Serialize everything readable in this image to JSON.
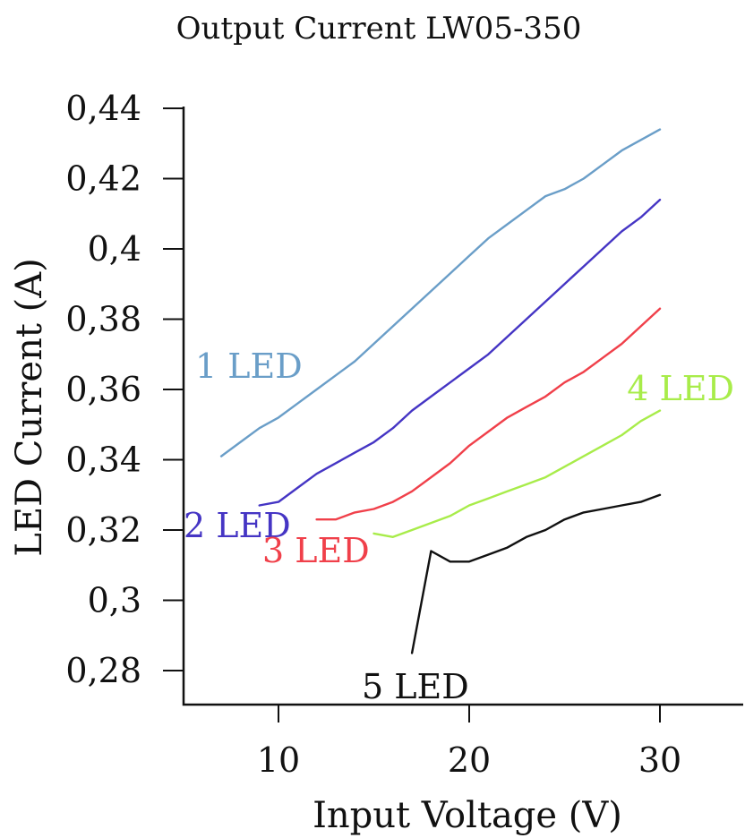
{
  "chart_data": {
    "type": "line",
    "title": "Output Current LW05-350",
    "xlabel": "Input Voltage (V)",
    "ylabel": "LED Current (A)",
    "xlim": [
      5,
      35
    ],
    "ylim": [
      0.27,
      0.445
    ],
    "x_ticks": [
      10,
      20,
      30
    ],
    "x_tick_labels": [
      "10",
      "20",
      "30"
    ],
    "y_ticks": [
      0.28,
      0.3,
      0.32,
      0.34,
      0.36,
      0.38,
      0.4,
      0.42,
      0.44
    ],
    "y_tick_labels": [
      "0,28",
      "0,3",
      "0,32",
      "0,34",
      "0,36",
      "0,38",
      "0,4",
      "0,42",
      "0,44"
    ],
    "grid": false,
    "legend": "inline labels",
    "series": [
      {
        "name": "1 LED",
        "color": "#6a9ec8",
        "x": [
          7,
          8,
          9,
          10,
          11,
          12,
          13,
          14,
          15,
          16,
          17,
          18,
          19,
          20,
          21,
          22,
          23,
          24,
          25,
          26,
          27,
          28,
          29,
          30
        ],
        "y": [
          0.341,
          0.345,
          0.349,
          0.352,
          0.356,
          0.36,
          0.364,
          0.368,
          0.373,
          0.378,
          0.383,
          0.388,
          0.393,
          0.398,
          0.403,
          0.407,
          0.411,
          0.415,
          0.417,
          0.42,
          0.424,
          0.428,
          0.431,
          0.434
        ]
      },
      {
        "name": "2 LED",
        "color": "#4535c4",
        "x": [
          9,
          10,
          11,
          12,
          13,
          14,
          15,
          16,
          17,
          18,
          19,
          20,
          21,
          22,
          23,
          24,
          25,
          26,
          27,
          28,
          29,
          30
        ],
        "y": [
          0.327,
          0.328,
          0.332,
          0.336,
          0.339,
          0.342,
          0.345,
          0.349,
          0.354,
          0.358,
          0.362,
          0.366,
          0.37,
          0.375,
          0.38,
          0.385,
          0.39,
          0.395,
          0.4,
          0.405,
          0.409,
          0.414
        ]
      },
      {
        "name": "3 LED",
        "color": "#f0404a",
        "x": [
          12,
          13,
          14,
          15,
          16,
          17,
          18,
          19,
          20,
          21,
          22,
          23,
          24,
          25,
          26,
          27,
          28,
          29,
          30
        ],
        "y": [
          0.323,
          0.323,
          0.325,
          0.326,
          0.328,
          0.331,
          0.335,
          0.339,
          0.344,
          0.348,
          0.352,
          0.355,
          0.358,
          0.362,
          0.365,
          0.369,
          0.373,
          0.378,
          0.383
        ]
      },
      {
        "name": "4 LED",
        "color": "#a8ec4a",
        "x": [
          15,
          16,
          17,
          18,
          19,
          20,
          21,
          22,
          23,
          24,
          25,
          26,
          27,
          28,
          29,
          30
        ],
        "y": [
          0.319,
          0.318,
          0.32,
          0.322,
          0.324,
          0.327,
          0.329,
          0.331,
          0.333,
          0.335,
          0.338,
          0.341,
          0.344,
          0.347,
          0.351,
          0.354
        ]
      },
      {
        "name": "5 LED",
        "color": "#111111",
        "x": [
          17,
          18,
          19,
          20,
          21,
          22,
          23,
          24,
          25,
          26,
          27,
          28,
          29,
          30
        ],
        "y": [
          0.285,
          0.314,
          0.311,
          0.311,
          0.313,
          0.315,
          0.318,
          0.32,
          0.323,
          0.325,
          0.326,
          0.327,
          0.328,
          0.33
        ]
      }
    ]
  }
}
